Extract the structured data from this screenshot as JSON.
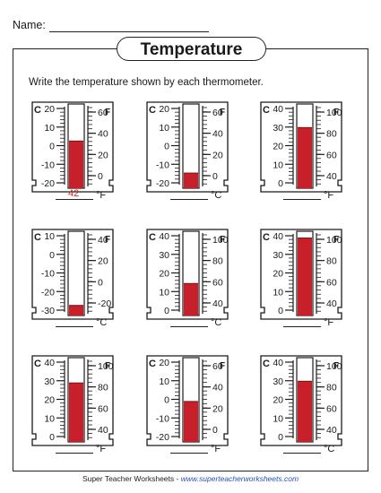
{
  "header": {
    "name_label": "Name:"
  },
  "title": "Temperature",
  "instructions": "Write the temperature shown by each thermometer.",
  "scale_letters": {
    "c": "C",
    "f": "F"
  },
  "colors": {
    "mercury": "#c8202a",
    "mercury_edge": "#7a1016",
    "ink": "#1a1a1a",
    "answer_ink": "#dd2222"
  },
  "thermometers": [
    {
      "c_ticks": [
        "20",
        "10",
        "0",
        "-10",
        "-20"
      ],
      "f_ticks": [
        "60",
        "40",
        "20",
        "0"
      ],
      "level": 0.56,
      "answer_value": "42",
      "answer_unit": "°F"
    },
    {
      "c_ticks": [
        "20",
        "10",
        "0",
        "-10",
        "-20"
      ],
      "f_ticks": [
        "60",
        "40",
        "20",
        "0"
      ],
      "level": 0.18,
      "answer_value": "",
      "answer_unit": "°C"
    },
    {
      "c_ticks": [
        "40",
        "30",
        "20",
        "10",
        "0"
      ],
      "f_ticks": [
        "100",
        "80",
        "60",
        "40"
      ],
      "level": 0.72,
      "answer_value": "",
      "answer_unit": "°F"
    },
    {
      "c_ticks": [
        "10",
        "0",
        "-10",
        "-20",
        "-30"
      ],
      "f_ticks": [
        "40",
        "20",
        "0",
        "-20"
      ],
      "level": 0.12,
      "answer_value": "",
      "answer_unit": "°C"
    },
    {
      "c_ticks": [
        "40",
        "30",
        "20",
        "10",
        "0"
      ],
      "f_ticks": [
        "100",
        "80",
        "60",
        "40"
      ],
      "level": 0.38,
      "answer_value": "",
      "answer_unit": "°C"
    },
    {
      "c_ticks": [
        "40",
        "30",
        "20",
        "10",
        "0"
      ],
      "f_ticks": [
        "100",
        "80",
        "60",
        "40"
      ],
      "level": 0.92,
      "answer_value": "",
      "answer_unit": "°F"
    },
    {
      "c_ticks": [
        "40",
        "30",
        "20",
        "10",
        "0"
      ],
      "f_ticks": [
        "100",
        "80",
        "60",
        "40"
      ],
      "level": 0.7,
      "answer_value": "",
      "answer_unit": "°F"
    },
    {
      "c_ticks": [
        "20",
        "10",
        "0",
        "-10",
        "-20"
      ],
      "f_ticks": [
        "60",
        "40",
        "20",
        "0"
      ],
      "level": 0.48,
      "answer_value": "",
      "answer_unit": "°F"
    },
    {
      "c_ticks": [
        "40",
        "30",
        "20",
        "10",
        "0"
      ],
      "f_ticks": [
        "100",
        "80",
        "60",
        "40"
      ],
      "level": 0.72,
      "answer_value": "",
      "answer_unit": "°C"
    }
  ],
  "footer": {
    "text": "Super Teacher Worksheets - ",
    "link": "www.superteacherworksheets.com"
  }
}
